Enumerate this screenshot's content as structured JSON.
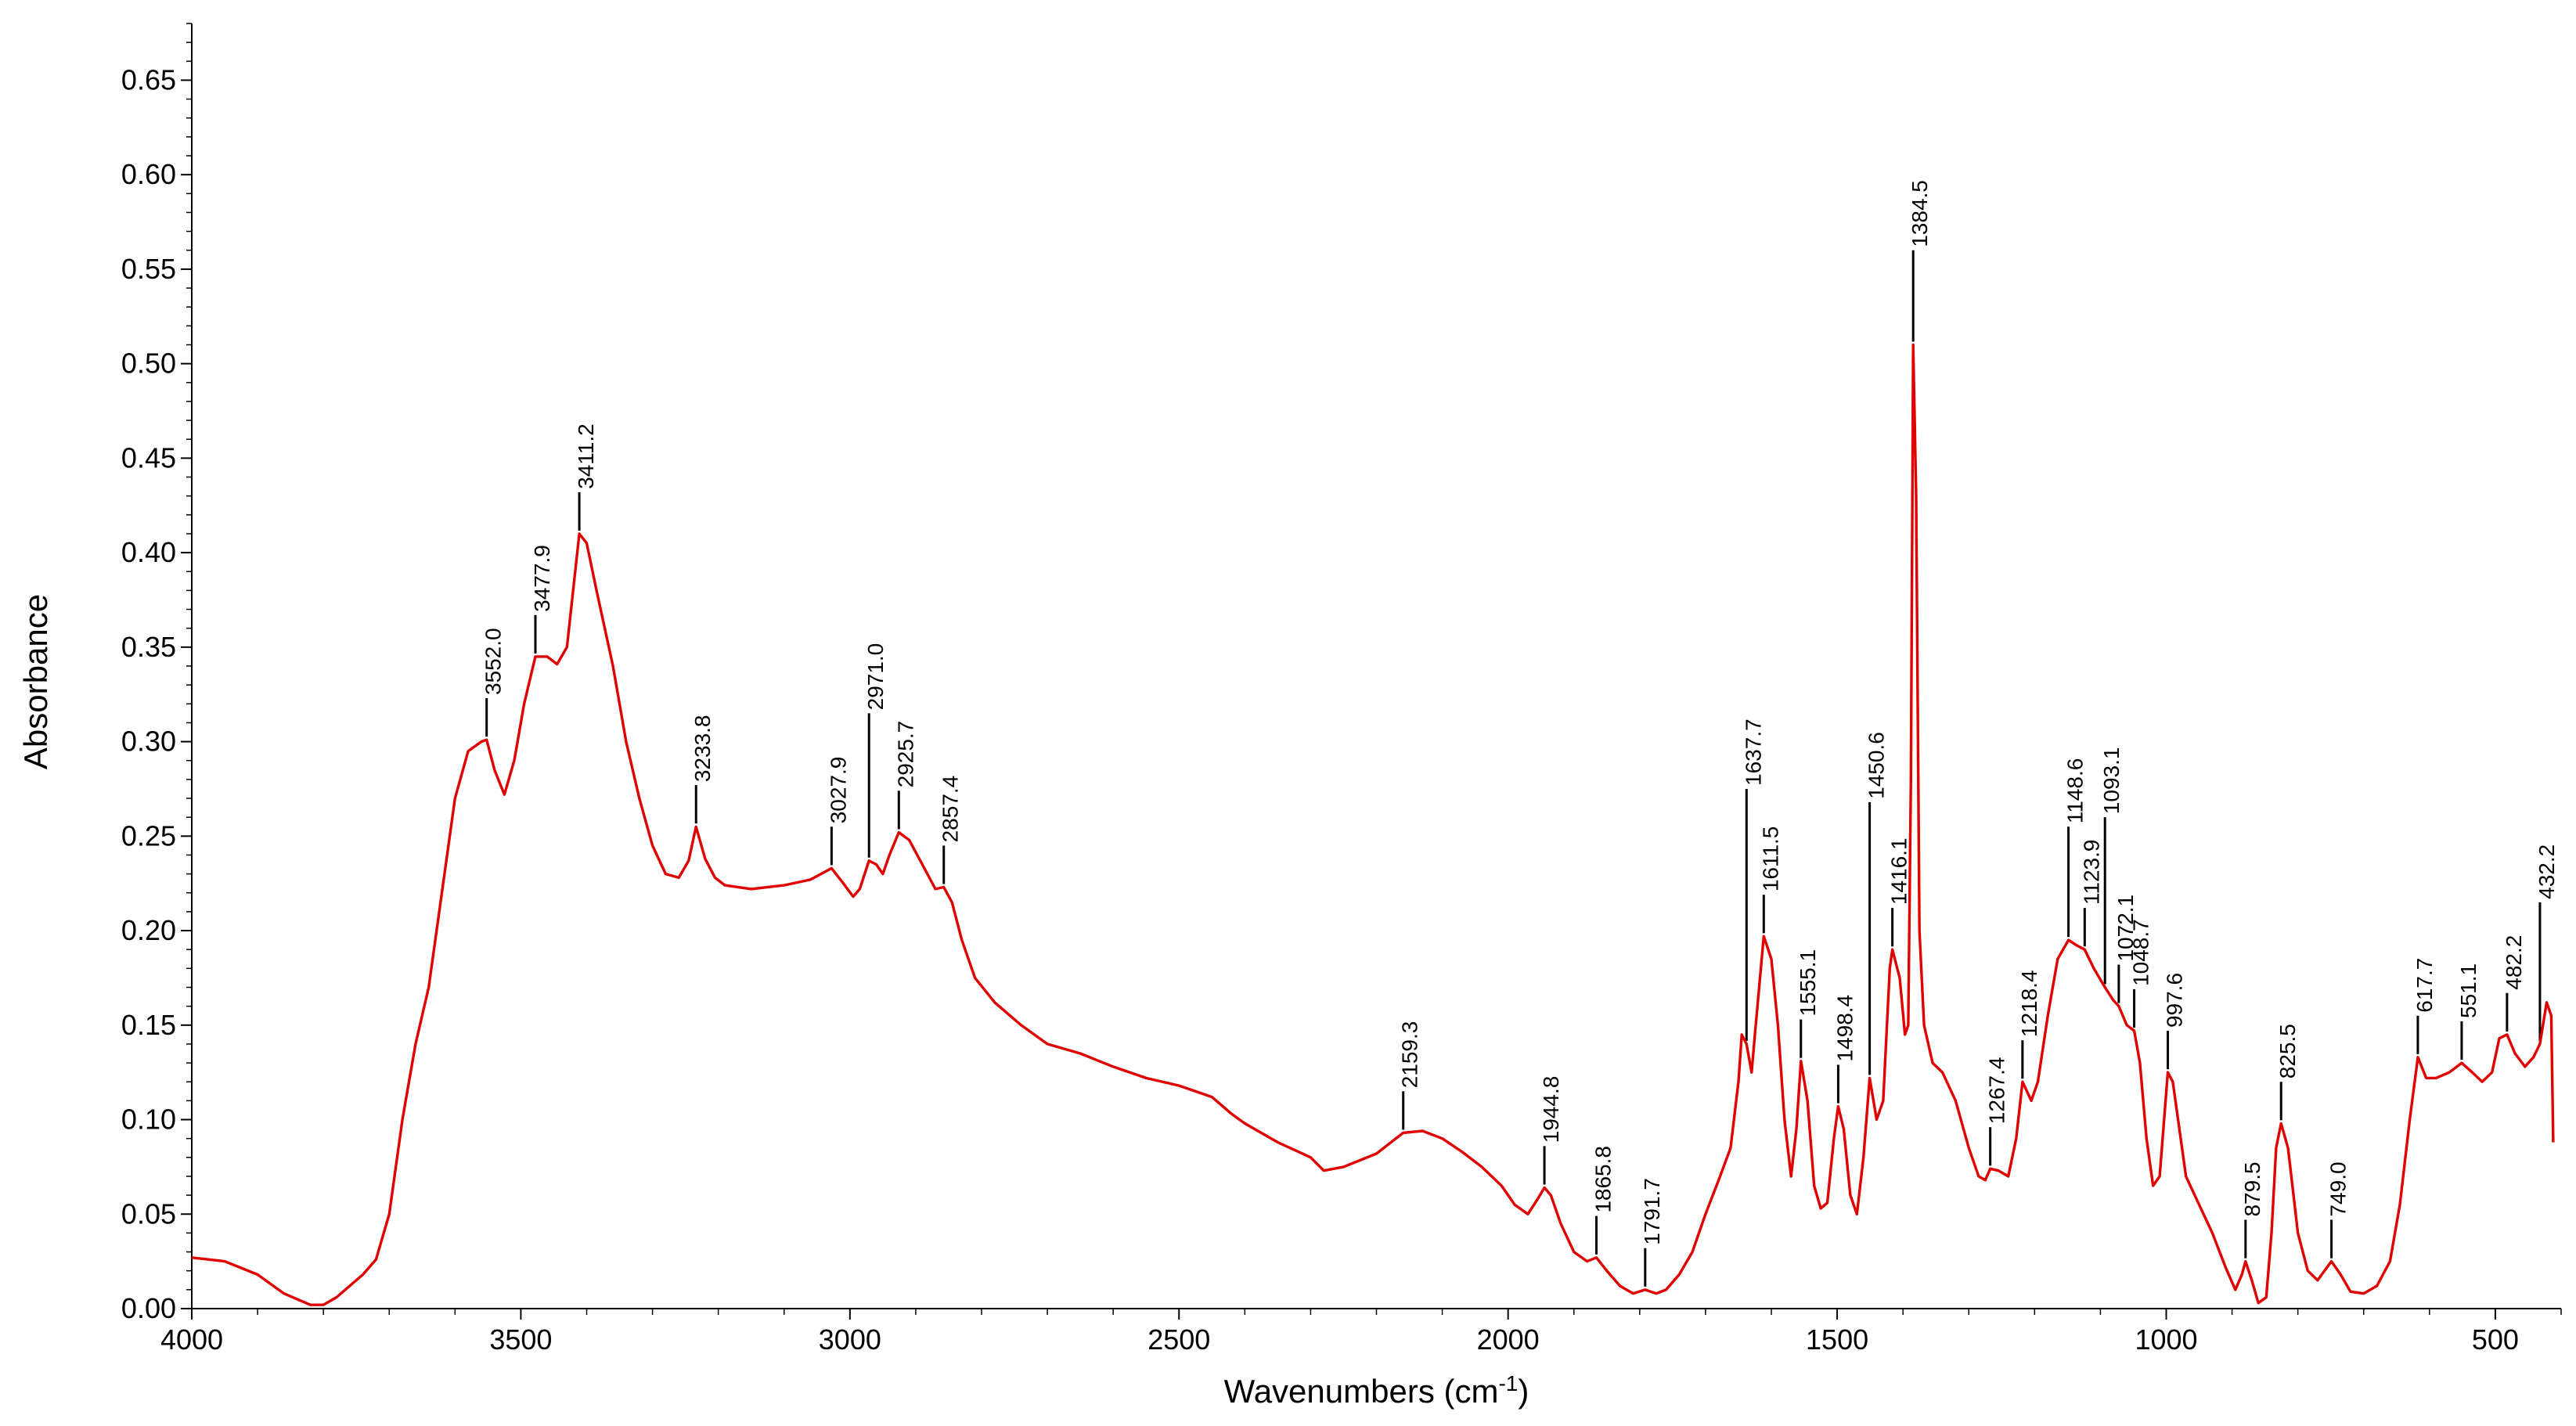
{
  "chart_data": {
    "type": "line",
    "title": "",
    "xlabel": "Wavenumbers (cm",
    "xlabel_sup": "-1",
    "xlabel_close": ")",
    "ylabel": "Absorbance",
    "xlim": [
      4000,
      400
    ],
    "ylim": [
      0.0,
      0.68
    ],
    "x_reversed": true,
    "grid": false,
    "legend": "none",
    "line_color": "#e00000",
    "marker_color": "#000000",
    "x_ticks": [
      {
        "value": 4000,
        "label": "4000"
      },
      {
        "value": 3500,
        "label": "3500"
      },
      {
        "value": 3000,
        "label": "3000"
      },
      {
        "value": 2500,
        "label": "2500"
      },
      {
        "value": 2000,
        "label": "2000"
      },
      {
        "value": 1500,
        "label": "1500"
      },
      {
        "value": 1000,
        "label": "1000"
      },
      {
        "value": 500,
        "label": "500"
      }
    ],
    "y_ticks": [
      {
        "value": 0.0,
        "label": "0.00"
      },
      {
        "value": 0.05,
        "label": "0.05"
      },
      {
        "value": 0.1,
        "label": "0.10"
      },
      {
        "value": 0.15,
        "label": "0.15"
      },
      {
        "value": 0.2,
        "label": "0.20"
      },
      {
        "value": 0.25,
        "label": "0.25"
      },
      {
        "value": 0.3,
        "label": "0.30"
      },
      {
        "value": 0.35,
        "label": "0.35"
      },
      {
        "value": 0.4,
        "label": "0.40"
      },
      {
        "value": 0.45,
        "label": "0.45"
      },
      {
        "value": 0.5,
        "label": "0.50"
      },
      {
        "value": 0.55,
        "label": "0.55"
      },
      {
        "value": 0.6,
        "label": "0.60"
      },
      {
        "value": 0.65,
        "label": "0.65"
      }
    ],
    "series": [
      {
        "points": [
          [
            4000,
            0.027
          ],
          [
            3950,
            0.025
          ],
          [
            3900,
            0.018
          ],
          [
            3860,
            0.008
          ],
          [
            3820,
            0.002
          ],
          [
            3800,
            0.002
          ],
          [
            3780,
            0.006
          ],
          [
            3760,
            0.012
          ],
          [
            3740,
            0.018
          ],
          [
            3720,
            0.026
          ],
          [
            3700,
            0.05
          ],
          [
            3680,
            0.1
          ],
          [
            3660,
            0.14
          ],
          [
            3640,
            0.17
          ],
          [
            3620,
            0.22
          ],
          [
            3600,
            0.27
          ],
          [
            3580,
            0.295
          ],
          [
            3560,
            0.3
          ],
          [
            3552,
            0.301
          ],
          [
            3540,
            0.285
          ],
          [
            3525,
            0.272
          ],
          [
            3510,
            0.29
          ],
          [
            3495,
            0.32
          ],
          [
            3477.9,
            0.345
          ],
          [
            3460,
            0.345
          ],
          [
            3445,
            0.341
          ],
          [
            3430,
            0.35
          ],
          [
            3411.2,
            0.41
          ],
          [
            3400,
            0.405
          ],
          [
            3385,
            0.38
          ],
          [
            3360,
            0.34
          ],
          [
            3340,
            0.3
          ],
          [
            3320,
            0.27
          ],
          [
            3300,
            0.245
          ],
          [
            3280,
            0.23
          ],
          [
            3260,
            0.228
          ],
          [
            3245,
            0.237
          ],
          [
            3233.8,
            0.255
          ],
          [
            3220,
            0.238
          ],
          [
            3205,
            0.228
          ],
          [
            3190,
            0.224
          ],
          [
            3150,
            0.222
          ],
          [
            3100,
            0.224
          ],
          [
            3060,
            0.227
          ],
          [
            3027.9,
            0.233
          ],
          [
            3010,
            0.225
          ],
          [
            2995,
            0.218
          ],
          [
            2985,
            0.222
          ],
          [
            2971,
            0.237
          ],
          [
            2960,
            0.235
          ],
          [
            2950,
            0.23
          ],
          [
            2940,
            0.24
          ],
          [
            2925.7,
            0.252
          ],
          [
            2910,
            0.248
          ],
          [
            2890,
            0.235
          ],
          [
            2870,
            0.222
          ],
          [
            2857.4,
            0.223
          ],
          [
            2845,
            0.215
          ],
          [
            2830,
            0.195
          ],
          [
            2810,
            0.175
          ],
          [
            2780,
            0.162
          ],
          [
            2740,
            0.15
          ],
          [
            2700,
            0.14
          ],
          [
            2650,
            0.135
          ],
          [
            2600,
            0.128
          ],
          [
            2550,
            0.122
          ],
          [
            2500,
            0.118
          ],
          [
            2450,
            0.112
          ],
          [
            2420,
            0.103
          ],
          [
            2400,
            0.098
          ],
          [
            2350,
            0.088
          ],
          [
            2300,
            0.08
          ],
          [
            2280,
            0.073
          ],
          [
            2250,
            0.075
          ],
          [
            2200,
            0.082
          ],
          [
            2159.3,
            0.093
          ],
          [
            2130,
            0.094
          ],
          [
            2100,
            0.09
          ],
          [
            2070,
            0.083
          ],
          [
            2040,
            0.075
          ],
          [
            2010,
            0.065
          ],
          [
            1990,
            0.055
          ],
          [
            1970,
            0.05
          ],
          [
            1955,
            0.058
          ],
          [
            1944.8,
            0.064
          ],
          [
            1935,
            0.06
          ],
          [
            1920,
            0.045
          ],
          [
            1900,
            0.03
          ],
          [
            1880,
            0.025
          ],
          [
            1865.8,
            0.027
          ],
          [
            1850,
            0.02
          ],
          [
            1830,
            0.012
          ],
          [
            1810,
            0.008
          ],
          [
            1791.7,
            0.01
          ],
          [
            1775,
            0.008
          ],
          [
            1760,
            0.01
          ],
          [
            1740,
            0.018
          ],
          [
            1720,
            0.03
          ],
          [
            1700,
            0.05
          ],
          [
            1680,
            0.068
          ],
          [
            1662,
            0.085
          ],
          [
            1650,
            0.12
          ],
          [
            1645,
            0.145
          ],
          [
            1637.7,
            0.14
          ],
          [
            1630,
            0.125
          ],
          [
            1625,
            0.145
          ],
          [
            1611.5,
            0.197
          ],
          [
            1600,
            0.185
          ],
          [
            1590,
            0.15
          ],
          [
            1580,
            0.1
          ],
          [
            1570,
            0.07
          ],
          [
            1562,
            0.095
          ],
          [
            1555.1,
            0.131
          ],
          [
            1545,
            0.11
          ],
          [
            1535,
            0.065
          ],
          [
            1525,
            0.053
          ],
          [
            1515,
            0.056
          ],
          [
            1505,
            0.09
          ],
          [
            1498.4,
            0.107
          ],
          [
            1490,
            0.095
          ],
          [
            1480,
            0.06
          ],
          [
            1470,
            0.05
          ],
          [
            1460,
            0.08
          ],
          [
            1450.6,
            0.122
          ],
          [
            1440,
            0.1
          ],
          [
            1430,
            0.11
          ],
          [
            1420,
            0.18
          ],
          [
            1416.1,
            0.19
          ],
          [
            1405,
            0.175
          ],
          [
            1397,
            0.145
          ],
          [
            1392,
            0.15
          ],
          [
            1388,
            0.28
          ],
          [
            1384.5,
            0.51
          ],
          [
            1380,
            0.43
          ],
          [
            1375,
            0.2
          ],
          [
            1368,
            0.15
          ],
          [
            1355,
            0.13
          ],
          [
            1340,
            0.125
          ],
          [
            1320,
            0.11
          ],
          [
            1300,
            0.085
          ],
          [
            1285,
            0.07
          ],
          [
            1275,
            0.068
          ],
          [
            1267.4,
            0.074
          ],
          [
            1255,
            0.073
          ],
          [
            1240,
            0.07
          ],
          [
            1228,
            0.09
          ],
          [
            1218.4,
            0.12
          ],
          [
            1205,
            0.11
          ],
          [
            1195,
            0.12
          ],
          [
            1180,
            0.155
          ],
          [
            1165,
            0.185
          ],
          [
            1148.6,
            0.195
          ],
          [
            1135,
            0.192
          ],
          [
            1123.9,
            0.19
          ],
          [
            1110,
            0.18
          ],
          [
            1093.1,
            0.17
          ],
          [
            1080,
            0.163
          ],
          [
            1072.1,
            0.16
          ],
          [
            1060,
            0.15
          ],
          [
            1048.7,
            0.147
          ],
          [
            1040,
            0.13
          ],
          [
            1030,
            0.09
          ],
          [
            1020,
            0.065
          ],
          [
            1010,
            0.07
          ],
          [
            997.6,
            0.125
          ],
          [
            990,
            0.12
          ],
          [
            980,
            0.095
          ],
          [
            970,
            0.07
          ],
          [
            950,
            0.055
          ],
          [
            930,
            0.04
          ],
          [
            910,
            0.022
          ],
          [
            895,
            0.01
          ],
          [
            885,
            0.018
          ],
          [
            879.5,
            0.025
          ],
          [
            870,
            0.015
          ],
          [
            860,
            0.003
          ],
          [
            848,
            0.006
          ],
          [
            840,
            0.04
          ],
          [
            833,
            0.085
          ],
          [
            825.5,
            0.098
          ],
          [
            815,
            0.085
          ],
          [
            800,
            0.04
          ],
          [
            785,
            0.02
          ],
          [
            770,
            0.015
          ],
          [
            749,
            0.025
          ],
          [
            735,
            0.018
          ],
          [
            720,
            0.009
          ],
          [
            700,
            0.008
          ],
          [
            680,
            0.012
          ],
          [
            660,
            0.025
          ],
          [
            645,
            0.055
          ],
          [
            630,
            0.1
          ],
          [
            617.7,
            0.133
          ],
          [
            605,
            0.122
          ],
          [
            590,
            0.122
          ],
          [
            570,
            0.125
          ],
          [
            551.1,
            0.13
          ],
          [
            535,
            0.125
          ],
          [
            520,
            0.12
          ],
          [
            505,
            0.125
          ],
          [
            494,
            0.143
          ],
          [
            482.2,
            0.145
          ],
          [
            470,
            0.135
          ],
          [
            455,
            0.128
          ],
          [
            442,
            0.133
          ],
          [
            432.2,
            0.14
          ],
          [
            422,
            0.162
          ],
          [
            415,
            0.155
          ],
          [
            412,
            0.088
          ]
        ]
      }
    ],
    "markers": [
      {
        "x": 3552.0,
        "label": "3552.0"
      },
      {
        "x": 3477.9,
        "label": "3477.9"
      },
      {
        "x": 3411.2,
        "label": "3411.2"
      },
      {
        "x": 3233.8,
        "label": "3233.8"
      },
      {
        "x": 3027.9,
        "label": "3027.9"
      },
      {
        "x": 2971.0,
        "label": "2971.0"
      },
      {
        "x": 2925.7,
        "label": "2925.7"
      },
      {
        "x": 2857.4,
        "label": "2857.4"
      },
      {
        "x": 2159.3,
        "label": "2159.3"
      },
      {
        "x": 1944.8,
        "label": "1944.8"
      },
      {
        "x": 1865.8,
        "label": "1865.8"
      },
      {
        "x": 1791.7,
        "label": "1791.7"
      },
      {
        "x": 1637.7,
        "label": "1637.7"
      },
      {
        "x": 1611.5,
        "label": "1611.5"
      },
      {
        "x": 1555.1,
        "label": "1555.1"
      },
      {
        "x": 1498.4,
        "label": "1498.4"
      },
      {
        "x": 1450.6,
        "label": "1450.6"
      },
      {
        "x": 1416.1,
        "label": "1416.1"
      },
      {
        "x": 1384.5,
        "label": "1384.5"
      },
      {
        "x": 1267.4,
        "label": "1267.4"
      },
      {
        "x": 1218.4,
        "label": "1218.4"
      },
      {
        "x": 1148.6,
        "label": "1148.6"
      },
      {
        "x": 1123.9,
        "label": "1123.9"
      },
      {
        "x": 1093.1,
        "label": "1093.1"
      },
      {
        "x": 1072.1,
        "label": "1072.1"
      },
      {
        "x": 1048.7,
        "label": "1048.7"
      },
      {
        "x": 997.6,
        "label": "997.6"
      },
      {
        "x": 879.5,
        "label": "879.5"
      },
      {
        "x": 825.5,
        "label": "825.5"
      },
      {
        "x": 749.0,
        "label": "749.0"
      },
      {
        "x": 617.7,
        "label": "617.7"
      },
      {
        "x": 551.1,
        "label": "551.1"
      },
      {
        "x": 482.2,
        "label": "482.2"
      },
      {
        "x": 432.2,
        "label": "432.2"
      }
    ]
  }
}
